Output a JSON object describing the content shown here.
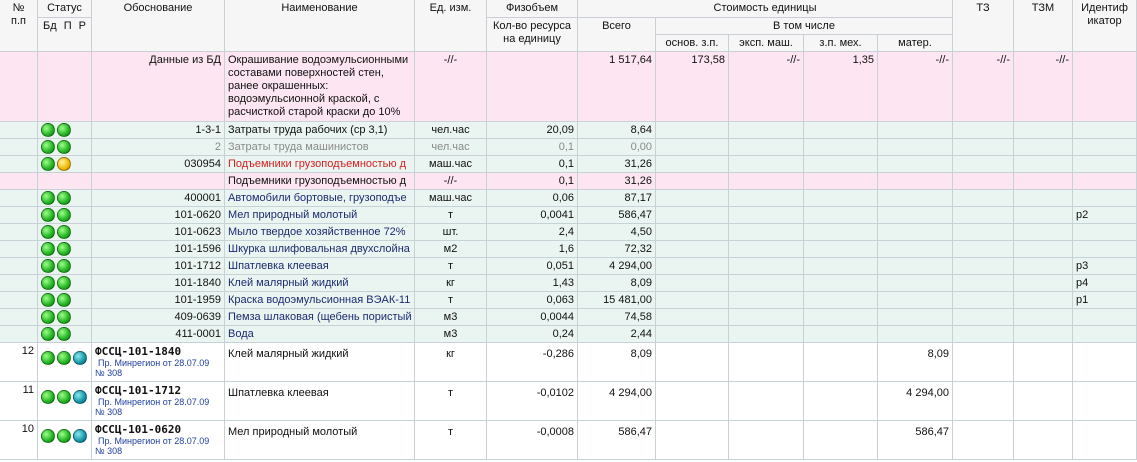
{
  "header": {
    "num_1": "№",
    "num_2": "п.п",
    "status": "Статус",
    "status_db": "Бд",
    "status_p": "П",
    "status_r": "Р",
    "code": "Обоснование",
    "name": "Наименование",
    "unit": "Ед. изм.",
    "volume": "Физобъем",
    "qty": "Кол-во ресурса на единицу",
    "cost": "Стоимость единицы",
    "total": "Всего",
    "including": "В том числе",
    "wage": "основ. з.п.",
    "mach": "эксп. маш.",
    "mechwage": "з.п. мех.",
    "mater": "матер.",
    "tz": "ТЗ",
    "tzm": "ТЗМ",
    "ident": "Идентификатор"
  },
  "rows": [
    {
      "kind": "db",
      "code": "Данные из БД",
      "name": "Окрашивание водоэмульсионными составами поверхностей стен, ранее окрашенных: водоэмульсионной краской, с расчисткой старой краски до 10%",
      "unit": "-//-",
      "total": "1 517,64",
      "wage": "173,58",
      "mach": "-//-",
      "mechwage": "1,35",
      "mater": "-//-",
      "tz": "-//-",
      "tzm": "-//-"
    },
    {
      "kind": "resource",
      "status": [
        "green",
        "green"
      ],
      "code": "1-3-1",
      "name": "Затраты труда рабочих (ср 3,1)",
      "unit": "чел.час",
      "qty": "20,09",
      "total": "8,64"
    },
    {
      "kind": "resource-gray",
      "status": [
        "green",
        "green"
      ],
      "code": "2",
      "name": "Затраты труда машинистов",
      "unit": "чел.час",
      "qty": "0,1",
      "total": "0,00"
    },
    {
      "kind": "resource-red",
      "status": [
        "green",
        "yellow"
      ],
      "code": "030954",
      "name": "Подъемники грузоподъемностью д",
      "unit": "маш.час",
      "qty": "0,1",
      "total": "31,26"
    },
    {
      "kind": "sub",
      "name": "Подъемники грузоподъемностью д",
      "unit": "-//-",
      "qty": "0,1",
      "total": "31,26"
    },
    {
      "kind": "resource-blue",
      "status": [
        "green",
        "green"
      ],
      "code": "400001",
      "name": "Автомобили бортовые, грузоподъе",
      "unit": "маш.час",
      "qty": "0,06",
      "total": "87,17"
    },
    {
      "kind": "resource-blue",
      "status": [
        "green",
        "green"
      ],
      "code": "101-0620",
      "name": "Мел природный молотый",
      "unit": "т",
      "qty": "0,0041",
      "total": "586,47",
      "ident": "p2"
    },
    {
      "kind": "resource-blue",
      "status": [
        "green",
        "green"
      ],
      "code": "101-0623",
      "name": "Мыло твердое хозяйственное 72%",
      "unit": "шт.",
      "qty": "2,4",
      "total": "4,50"
    },
    {
      "kind": "resource-blue",
      "status": [
        "green",
        "green"
      ],
      "code": "101-1596",
      "name": "Шкурка шлифовальная двухслойна",
      "unit": "м2",
      "qty": "1,6",
      "total": "72,32"
    },
    {
      "kind": "resource-blue",
      "status": [
        "green",
        "green"
      ],
      "code": "101-1712",
      "name": "Шпатлевка клеевая",
      "unit": "т",
      "qty": "0,051",
      "total": "4 294,00",
      "ident": "p3"
    },
    {
      "kind": "resource-blue",
      "status": [
        "green",
        "green"
      ],
      "code": "101-1840",
      "name": "Клей малярный жидкий",
      "unit": "кг",
      "qty": "1,43",
      "total": "8,09",
      "ident": "p4"
    },
    {
      "kind": "resource-blue",
      "status": [
        "green",
        "green"
      ],
      "code": "101-1959",
      "name": "Краска водоэмульсионная ВЭАК-11",
      "unit": "т",
      "qty": "0,063",
      "total": "15 481,00",
      "ident": "p1"
    },
    {
      "kind": "resource-blue",
      "status": [
        "green",
        "green"
      ],
      "code": "409-0639",
      "name": "Пемза шлаковая (щебень пористый",
      "unit": "м3",
      "qty": "0,0044",
      "total": "74,58"
    },
    {
      "kind": "resource-blue",
      "status": [
        "green",
        "green"
      ],
      "code": "411-0001",
      "name": "Вода",
      "unit": "м3",
      "qty": "0,24",
      "total": "2,44"
    },
    {
      "kind": "item",
      "num": "12",
      "status": [
        "green",
        "green",
        "teal"
      ],
      "code": "ФССЦ-101-1840",
      "note1": "Пр. Минрегион от 28.07.09",
      "note2": "№ 308",
      "name": "Клей малярный жидкий",
      "unit": "кг",
      "qty": "-0,286",
      "total": "8,09",
      "mater": "8,09"
    },
    {
      "kind": "item",
      "num": "11",
      "status": [
        "green",
        "green",
        "teal"
      ],
      "code": "ФССЦ-101-1712",
      "note1": "Пр. Минрегион от 28.07.09",
      "note2": "№ 308",
      "name": "Шпатлевка клеевая",
      "unit": "т",
      "qty": "-0,0102",
      "total": "4 294,00",
      "mater": "4 294,00"
    },
    {
      "kind": "item",
      "num": "10",
      "status": [
        "green",
        "green",
        "teal"
      ],
      "code": "ФССЦ-101-0620",
      "note1": "Пр. Минрегион от 28.07.09",
      "note2": "№ 308",
      "name": "Мел природный молотый",
      "unit": "т",
      "qty": "-0,0008",
      "total": "586,47",
      "mater": "586,47"
    }
  ]
}
